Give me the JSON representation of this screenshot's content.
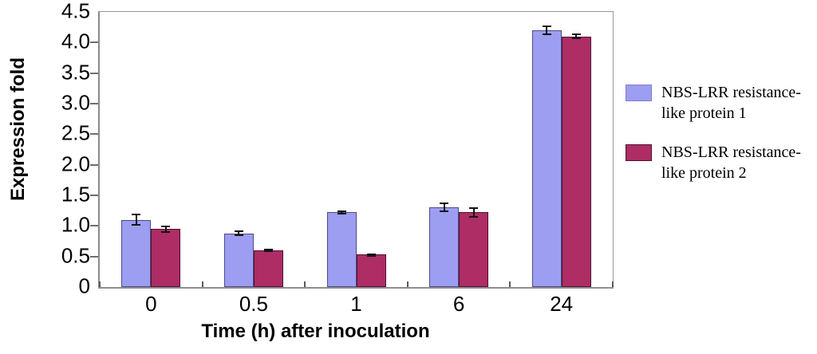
{
  "chart_data": {
    "type": "bar",
    "title": "",
    "xlabel": "Time (h) after inoculation",
    "ylabel": "Expression fold",
    "categories": [
      "0",
      "0.5",
      "1",
      "6",
      "24"
    ],
    "series": [
      {
        "name": "NBS-LRR resistance-like protein 1",
        "legend_lines": [
          "NBS-LRR  resistance-",
          "like protein 1"
        ],
        "color": "#9d9df1",
        "border_color": "#4a4a86",
        "values": [
          1.1,
          0.88,
          1.22,
          1.3,
          4.2
        ],
        "errors": [
          0.1,
          0.05,
          0.03,
          0.08,
          0.08
        ]
      },
      {
        "name": "NBS-LRR resistance-like protein 2",
        "legend_lines": [
          "NBS-LRR  resistance-",
          "like protein 2"
        ],
        "color": "#ad2d64",
        "border_color": "#4f1232",
        "values": [
          0.95,
          0.6,
          0.53,
          1.22,
          4.1
        ],
        "errors": [
          0.06,
          0.03,
          0.02,
          0.08,
          0.05
        ]
      }
    ],
    "ylim": [
      0,
      4.5
    ],
    "ytick_step": 0.5,
    "ytick_labels": [
      "0",
      "0.5",
      "1.0",
      "1.5",
      "2.0",
      "2.5",
      "3.0",
      "3.5",
      "4.0",
      "4.5"
    ],
    "grid": false,
    "legend_position": "right",
    "error_bar_color": "#141414",
    "frame_color": "#979797"
  }
}
